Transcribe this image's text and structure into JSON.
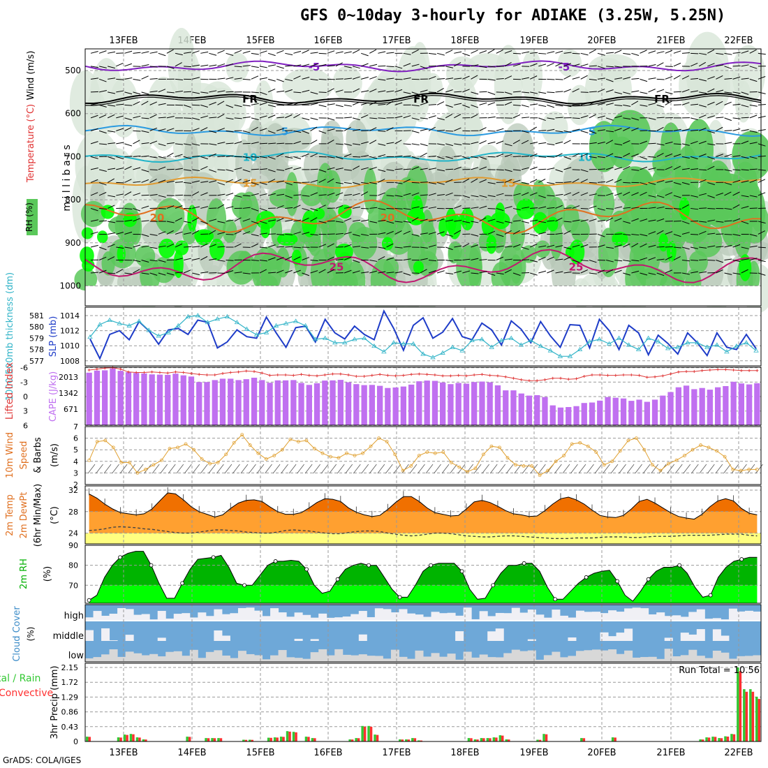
{
  "title": "GFS 0~10day 3-hourly for ADIAKE (3.25W, 5.25N)",
  "footer": "GrADS: COLA/IGES",
  "colors": {
    "rh_light": "#c8c8c8",
    "rh_mid": "#5ac85a",
    "rh_bright": "#00ff00",
    "slp": "#1e3cc8",
    "thickness": "#32b4c8",
    "lifted_index": "#e03c3c",
    "cape": "#c070f0",
    "wind": "#e0a030",
    "temp_dark": "#f07000",
    "temp_mid": "#ffa030",
    "temp_low": "#ffff80",
    "rh_dark": "#00b400",
    "rh_bright2": "#00ff00",
    "cloud": "#6ea8d8",
    "cloud_clear": "#f0f0f5",
    "precip_total": "#32c832",
    "precip_conv": "#ff3030"
  },
  "chart_data": [
    {
      "type": "heatmap",
      "name": "upper_air_cross_section",
      "x_dates": [
        "13FEB",
        "14FEB",
        "15FEB",
        "16FEB",
        "17FEB",
        "18FEB",
        "19FEB",
        "20FEB",
        "21FEB",
        "22FEB"
      ],
      "ylabel": "m i l l i b a r s",
      "y_ticks": [
        "500",
        "600",
        "700",
        "800",
        "900",
        "1000"
      ],
      "ylim": [
        450,
        1000
      ],
      "legend": {
        "rh": "RH (%)",
        "temperature": "Temperature (°C)",
        "wind": "Wind (m/s)"
      },
      "isotherm_labels": [
        "-5",
        "FR",
        "5",
        "10",
        "15",
        "20",
        "25"
      ],
      "rh_contour_labels": [
        "30",
        "30",
        "30",
        "30",
        "40",
        "40",
        "80"
      ]
    },
    {
      "type": "line",
      "name": "slp_and_thickness",
      "ylabel_left": "1000-500mb thickness (dm)",
      "ylabel_right": "SLP (mb)",
      "left_ticks": [
        "581",
        "580",
        "579",
        "578",
        "577"
      ],
      "right_ticks": [
        "1014",
        "1012",
        "1010",
        "1008"
      ],
      "slp_values": [
        1010.9,
        1008.3,
        1011.5,
        1012.0,
        1010.8,
        1013.2,
        1012.0,
        1010.2,
        1012.1,
        1012.3,
        1011.5,
        1013.4,
        1013.1,
        1009.7,
        1010.5,
        1012.1,
        1011.2,
        1011.0,
        1013.8,
        1011.7,
        1009.8,
        1012.4,
        1012.6,
        1010.5,
        1013.5,
        1011.7,
        1010.9,
        1012.6,
        1011.5,
        1010.8,
        1014.6,
        1012.3,
        1009.4,
        1012.7,
        1013.7,
        1011.0,
        1011.8,
        1013.6,
        1011.2,
        1010.8,
        1013.0,
        1012.1,
        1010.1,
        1013.3,
        1012.2,
        1010.4,
        1013.2,
        1011.3,
        1009.8,
        1012.8,
        1012.7,
        1009.7,
        1013.5,
        1012.0,
        1009.5,
        1012.7,
        1011.7,
        1008.8,
        1011.4,
        1010.3,
        1008.9,
        1011.7,
        1010.4,
        1008.7,
        1011.7,
        1009.8,
        1009.5,
        1011.5,
        1009.6
      ],
      "thickness_values": [
        579.1,
        580.2,
        580.6,
        580.3,
        580.1,
        580.5,
        579.7,
        579.2,
        579.5,
        580.1,
        580.9,
        581.0,
        580.4,
        580.7,
        580.9,
        580.4,
        579.8,
        579.3,
        579.5,
        580.1,
        580.3,
        580.5,
        580.1,
        578.9,
        579.0,
        578.6,
        578.6,
        578.9,
        579.0,
        578.3,
        577.8,
        578.6,
        578.5,
        578.5,
        577.6,
        577.3,
        577.7,
        578.2,
        577.9,
        578.8,
        578.9,
        578.2,
        578.8,
        579.0,
        578.4,
        578.8,
        578.3,
        577.9,
        577.4,
        577.4,
        578.0,
        578.7,
        578.9,
        578.5,
        579.0,
        578.4,
        578.0,
        579.0,
        578.7,
        578.1,
        578.2,
        578.6,
        578.6,
        578.2,
        578.4,
        577.8,
        578.3,
        578.6,
        577.9
      ]
    },
    {
      "type": "bar",
      "name": "lifted_index_and_cape",
      "ylabel_left": "Lifted Index",
      "ylabel_right": "CAPE (J/kg)",
      "left_ticks": [
        "-6",
        "-3",
        "0",
        "3",
        "6"
      ],
      "right_ticks": [
        "2013",
        "1342",
        "671"
      ],
      "cape_values": [
        2200,
        2290,
        2300,
        2380,
        2280,
        2220,
        2190,
        2170,
        2130,
        2120,
        2110,
        2160,
        2090,
        2040,
        1810,
        1810,
        1890,
        1950,
        1950,
        1890,
        1930,
        1990,
        1890,
        1780,
        1880,
        1880,
        1890,
        1770,
        1690,
        1760,
        1870,
        1880,
        1900,
        1800,
        1720,
        1680,
        1690,
        1650,
        1560,
        1580,
        1620,
        1700,
        1840,
        1870,
        1860,
        1790,
        1720,
        1770,
        1740,
        1810,
        1830,
        1800,
        1670,
        1460,
        1460,
        1330,
        1240,
        1260,
        1180,
        830,
        740,
        760,
        800,
        930,
        950,
        1030,
        1180,
        1150,
        1120,
        1020,
        1070,
        980,
        1070,
        1240,
        1390,
        1590,
        1660,
        1510,
        1560,
        1490,
        1590,
        1640,
        1820,
        1750,
        1710,
        1760
      ],
      "li_values": [
        -5.5,
        -5.7,
        -5.9,
        -6.0,
        -5.7,
        -5.1,
        -5.0,
        -5.0,
        -5.1,
        -5.0,
        -4.9,
        -5.1,
        -5.0,
        -4.8,
        -4.6,
        -4.5,
        -4.5,
        -4.8,
        -5.0,
        -5.1,
        -5.3,
        -5.2,
        -4.9,
        -4.4,
        -4.5,
        -4.5,
        -4.4,
        -4.6,
        -4.4,
        -4.3,
        -4.5,
        -4.7,
        -4.7,
        -4.5,
        -4.2,
        -4.2,
        -4.4,
        -4.6,
        -4.4,
        -4.3,
        -4.4,
        -4.6,
        -4.7,
        -4.6,
        -4.5,
        -4.3,
        -4.3,
        -4.4,
        -4.3,
        -4.5,
        -4.6,
        -4.4,
        -4.3,
        -4.1,
        -3.8,
        -3.5,
        -3.3,
        -3.3,
        -3.5,
        -3.8,
        -3.8,
        -3.6,
        -3.7,
        -4.2,
        -4.5,
        -4.5,
        -4.4,
        -4.4,
        -4.5,
        -4.5,
        -4.4,
        -4.0,
        -4.1,
        -4.3,
        -4.7,
        -5.1,
        -5.2,
        -5.2,
        -5.4,
        -5.5,
        -5.6,
        -5.6,
        -5.5,
        -5.4,
        -5.4,
        -5.4
      ]
    },
    {
      "type": "line",
      "name": "wind_10m",
      "ylabel": "10m Wind Speed & Barbs (m/s)",
      "label_line1": "10m Wind",
      "label_line2": "Speed",
      "label_line3": "& Barbs",
      "unit": "(m/s)",
      "y_ticks": [
        "7",
        "6",
        "5",
        "4",
        "3",
        "2"
      ],
      "ylim": [
        2,
        7
      ],
      "values": [
        4.1,
        5.7,
        5.8,
        5.2,
        3.9,
        3.9,
        3.0,
        3.3,
        3.7,
        4.1,
        5.1,
        5.2,
        5.5,
        5.0,
        4.2,
        3.8,
        3.9,
        4.6,
        5.6,
        6.3,
        5.4,
        4.7,
        4.2,
        4.5,
        5.0,
        5.9,
        5.7,
        5.8,
        5.1,
        4.7,
        4.4,
        4.3,
        4.7,
        4.5,
        4.7,
        5.3,
        6.0,
        5.7,
        4.6,
        3.2,
        3.6,
        4.5,
        4.8,
        4.7,
        4.8,
        3.9,
        3.5,
        3.1,
        3.4,
        4.6,
        5.3,
        5.2,
        4.3,
        3.7,
        3.6,
        3.6,
        2.8,
        3.2,
        4.0,
        4.5,
        5.5,
        5.6,
        5.3,
        4.8,
        3.7,
        4.0,
        4.9,
        5.8,
        6.0,
        5.0,
        3.7,
        3.2,
        3.8,
        4.1,
        4.5,
        5.0,
        5.4,
        5.2,
        4.9,
        4.4,
        3.3,
        3.2,
        3.3,
        3.3
      ]
    },
    {
      "type": "area",
      "name": "temp_2m",
      "ylabel": "2m Temp / 2m DewPt (6hr Min/Max) (°C)",
      "label_line1": "2m Temp",
      "label_line2": "2m DewPt",
      "label_line3": "(6hr Min/Max)",
      "unit": "(°C)",
      "y_ticks": [
        "32",
        "28",
        "24"
      ],
      "ylim": [
        22,
        32
      ],
      "temp_values": [
        31.3,
        30.5,
        29.4,
        28.5,
        27.8,
        27.6,
        27.4,
        27.6,
        28.5,
        30.0,
        31.5,
        31.3,
        30.2,
        28.9,
        28.0,
        27.5,
        27.0,
        27.4,
        28.6,
        29.6,
        30.1,
        30.2,
        29.9,
        28.9,
        28.0,
        27.5,
        27.5,
        27.8,
        28.7,
        29.7,
        30.4,
        30.3,
        29.9,
        28.7,
        27.9,
        27.4,
        27.1,
        27.3,
        28.4,
        29.7,
        30.8,
        30.8,
        29.9,
        28.7,
        27.8,
        27.5,
        27.2,
        27.3,
        28.5,
        29.8,
        30.1,
        29.7,
        29.0,
        28.2,
        27.6,
        27.4,
        27.1,
        27.2,
        28.2,
        29.4,
        30.4,
        30.7,
        30.2,
        29.4,
        28.3,
        27.3,
        27.0,
        26.9,
        27.3,
        28.5,
        29.9,
        30.3,
        29.6,
        28.7,
        27.8,
        27.1,
        26.8,
        26.6,
        27.5,
        28.9,
        30.0,
        30.4,
        30.0,
        28.6,
        27.7,
        27.4
      ],
      "dewpt_values": [
        24.5,
        24.6,
        24.8,
        25.1,
        25.2,
        25.1,
        25.0,
        24.8,
        24.7,
        24.5,
        24.3,
        24.1,
        24.0,
        24.0,
        24.2,
        24.4,
        24.6,
        24.6,
        24.5,
        24.4,
        24.2,
        24.1,
        24.0,
        24.0,
        24.2,
        24.5,
        24.6,
        24.5,
        24.4,
        24.2,
        24.0,
        23.9,
        23.9,
        24.1,
        24.3,
        24.4,
        24.4,
        24.3,
        24.0,
        23.8,
        23.6,
        23.5,
        23.6,
        23.8,
        24.0,
        24.0,
        23.9,
        23.7,
        23.5,
        23.4,
        23.3,
        23.3,
        23.4,
        23.5,
        23.5,
        23.4,
        23.3,
        23.2,
        23.1,
        23.0,
        23.0,
        23.0,
        23.1,
        23.1,
        23.1,
        23.2,
        23.3,
        23.3,
        23.3,
        23.2,
        23.2,
        23.3,
        23.4,
        23.4,
        23.4,
        23.5,
        23.6,
        23.6,
        23.6,
        23.6,
        23.7,
        23.8,
        23.8,
        23.8,
        23.6,
        23.5
      ]
    },
    {
      "type": "area",
      "name": "rh_2m",
      "ylabel": "2m RH (%)",
      "label_line1": "2m RH",
      "unit": "(%)",
      "y_ticks": [
        "90",
        "80",
        "70"
      ],
      "ylim": [
        61,
        90
      ],
      "values": [
        62.5,
        65,
        74,
        80,
        84,
        86,
        87,
        87,
        80,
        71,
        63.5,
        63.5,
        71,
        78,
        83,
        83.5,
        84,
        85,
        79,
        71,
        70,
        70,
        75,
        80,
        82,
        82,
        82.5,
        82,
        78,
        70,
        66,
        67,
        73,
        78,
        80,
        81,
        80,
        80,
        74,
        68,
        64,
        64,
        70,
        77,
        80,
        81,
        81,
        81,
        77,
        68,
        63,
        63.5,
        70,
        76,
        80,
        80,
        81,
        81,
        77,
        69,
        63,
        63,
        67,
        71,
        74,
        76,
        77,
        77.5,
        72,
        65,
        62,
        67,
        73,
        77,
        79,
        79,
        80,
        76,
        69,
        64,
        65,
        74,
        79,
        82,
        83,
        84,
        84
      ]
    },
    {
      "type": "heatmap",
      "name": "cloud_cover",
      "ylabel": "Cloud Cover (%)",
      "label_line1": "Cloud Cover",
      "unit": "(%)",
      "levels": [
        "high",
        "middle",
        "low"
      ]
    },
    {
      "type": "bar",
      "name": "precip_3hr",
      "ylabel": "3hr Precip (mm)",
      "legend": "Total / Rain Convective",
      "legend_total": "tal / Rain",
      "legend_conv": "Convective",
      "y_ticks": [
        "2.15",
        "1.72",
        "1.29",
        "0.86",
        "0.43",
        "0"
      ],
      "ylim": [
        0,
        2.15
      ],
      "run_total_label": "Run Total = 10.56",
      "values": [
        0.14,
        0,
        0,
        0,
        0,
        0.12,
        0.2,
        0.22,
        0.12,
        0.06,
        0,
        0,
        0,
        0,
        0,
        0,
        0.14,
        0,
        0,
        0.1,
        0.1,
        0.1,
        0,
        0,
        0,
        0.05,
        0.05,
        0,
        0,
        0.11,
        0.12,
        0.14,
        0.3,
        0.28,
        0,
        0.14,
        0.1,
        0,
        0,
        0,
        0,
        0,
        0.06,
        0.1,
        0.45,
        0.45,
        0.2,
        0,
        0,
        0,
        0.06,
        0.06,
        0.1,
        0.03,
        0,
        0,
        0,
        0,
        0,
        0,
        0,
        0.1,
        0.06,
        0.1,
        0.1,
        0.12,
        0.18,
        0.06,
        0,
        0,
        0,
        0,
        0.05,
        0.22,
        0,
        0,
        0,
        0,
        0,
        0.1,
        0,
        0,
        0,
        0,
        0.12,
        0,
        0,
        0,
        0,
        0,
        0,
        0,
        0,
        0,
        0,
        0,
        0,
        0,
        0.06,
        0.12,
        0.14,
        0.1,
        0.15,
        0.22,
        2.15,
        1.52,
        1.52,
        1.3
      ]
    }
  ]
}
